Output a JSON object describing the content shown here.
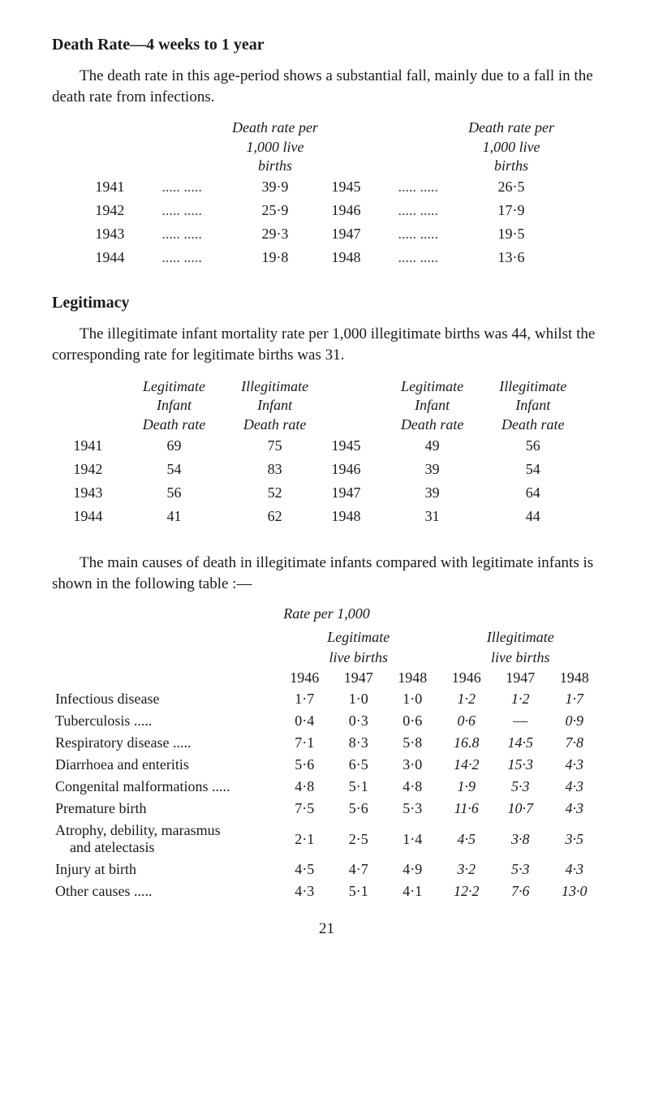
{
  "section1": {
    "title": "Death Rate—4 weeks to 1 year",
    "para": "The death rate in this age-period shows a substantial fall, mainly due to a fall in the death rate from infections.",
    "col_header_line1": "Death rate per",
    "col_header_line2": "1,000 live births",
    "rows": [
      {
        "y1": "1941",
        "d": ".....   .....",
        "v1": "39·9",
        "y2": "1945",
        "d2": ".....   .....",
        "v2": "26·5"
      },
      {
        "y1": "1942",
        "d": ".....   .....",
        "v1": "25·9",
        "y2": "1946",
        "d2": ".....   .....",
        "v2": "17·9"
      },
      {
        "y1": "1943",
        "d": ".....   .....",
        "v1": "29·3",
        "y2": "1947",
        "d2": ".....   .....",
        "v2": "19·5"
      },
      {
        "y1": "1944",
        "d": ".....   .....",
        "v1": "19·8",
        "y2": "1948",
        "d2": ".....   .....",
        "v2": "13·6"
      }
    ]
  },
  "section2": {
    "title": "Legitimacy",
    "para": "The illegitimate infant mortality rate per 1,000 illegitimate births was 44, whilst the corresponding rate for legitimate births was 31.",
    "hdr_leg": "Legitimate Infant Death rate",
    "hdr_ill": "Illegitimate Infant Death rate",
    "rows": [
      {
        "y1": "1941",
        "l1": "69",
        "i1": "75",
        "y2": "1945",
        "l2": "49",
        "i2": "56"
      },
      {
        "y1": "1942",
        "l1": "54",
        "i1": "83",
        "y2": "1946",
        "l2": "39",
        "i2": "54"
      },
      {
        "y1": "1943",
        "l1": "56",
        "i1": "52",
        "y2": "1947",
        "l2": "39",
        "i2": "64"
      },
      {
        "y1": "1944",
        "l1": "41",
        "i1": "62",
        "y2": "1948",
        "l2": "31",
        "i2": "44"
      }
    ]
  },
  "section3": {
    "para": "The main causes of death in illegitimate infants compared with legitimate infants is shown in the following table :—",
    "caption": "Rate per 1,000",
    "group_leg": "Legitimate",
    "group_ill": "Illegitimate",
    "sub": "live births",
    "years": [
      "1946",
      "1947",
      "1948",
      "1946",
      "1947",
      "1948"
    ],
    "rows": [
      {
        "label": "Infectious disease",
        "v": [
          "1·7",
          "1·0",
          "1·0",
          "1·2",
          "1·2",
          "1·7"
        ]
      },
      {
        "label": "Tuberculosis .....",
        "v": [
          "0·4",
          "0·3",
          "0·6",
          "0·6",
          "—",
          "0·9"
        ]
      },
      {
        "label": "Respiratory disease .....",
        "v": [
          "7·1",
          "8·3",
          "5·8",
          "16.8",
          "14·5",
          "7·8"
        ]
      },
      {
        "label": "Diarrhoea and enteritis",
        "v": [
          "5·6",
          "6·5",
          "3·0",
          "14·2",
          "15·3",
          "4·3"
        ]
      },
      {
        "label": "Congenital malformations .....",
        "v": [
          "4·8",
          "5·1",
          "4·8",
          "1·9",
          "5·3",
          "4·3"
        ]
      },
      {
        "label": "Premature birth",
        "v": [
          "7·5",
          "5·6",
          "5·3",
          "11·6",
          "10·7",
          "4·3"
        ]
      },
      {
        "label": "Atrophy, debility, marasmus\n    and atelectasis",
        "v": [
          "2·1",
          "2·5",
          "1·4",
          "4·5",
          "3·8",
          "3·5"
        ]
      },
      {
        "label": "Injury at birth",
        "v": [
          "4·5",
          "4·7",
          "4·9",
          "3·2",
          "5·3",
          "4·3"
        ]
      },
      {
        "label": "Other causes .....",
        "v": [
          "4·3",
          "5·1",
          "4·1",
          "12·2",
          "7·6",
          "13·0"
        ]
      }
    ]
  },
  "pagenum": "21"
}
